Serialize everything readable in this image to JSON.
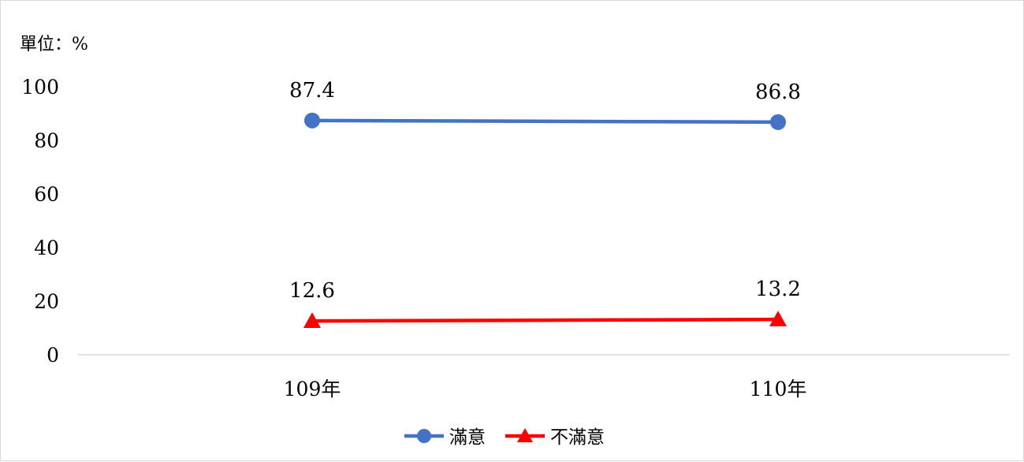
{
  "chart_data": {
    "type": "line",
    "unit_label": "單位：%",
    "categories": [
      "109年",
      "110年"
    ],
    "ylim": [
      0,
      100
    ],
    "yticks": [
      0,
      20,
      40,
      60,
      80,
      100
    ],
    "grid": false,
    "legend_position": "bottom-center",
    "series": [
      {
        "name": "滿意",
        "values": [
          87.4,
          86.8
        ],
        "color": "#4472c4",
        "marker": "circle"
      },
      {
        "name": "不滿意",
        "values": [
          12.6,
          13.2
        ],
        "color": "#ff0000",
        "marker": "triangle"
      }
    ]
  }
}
